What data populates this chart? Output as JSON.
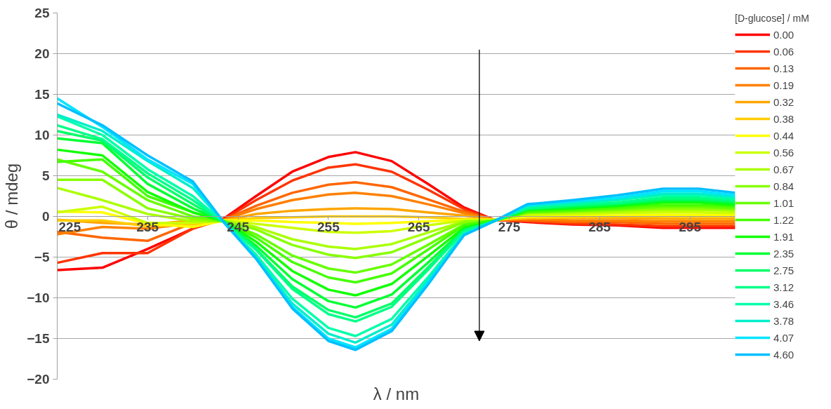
{
  "chart_data": {
    "type": "line",
    "xlabel": "λ / nm",
    "ylabel": "θ / mdeg",
    "legend_title": "[D-glucose] / mM",
    "x": [
      225,
      230,
      235,
      240,
      243.5,
      247,
      251,
      255,
      258,
      262,
      266,
      270,
      273.3,
      277,
      282,
      287,
      292,
      296,
      300
    ],
    "xlim": [
      225,
      300
    ],
    "xticks": [
      225,
      235,
      245,
      255,
      265,
      275,
      285,
      295
    ],
    "ylim": [
      -20,
      25
    ],
    "yticks": [
      -20,
      -15,
      -10,
      -5,
      0,
      5,
      10,
      15,
      20,
      25
    ],
    "grid": "y",
    "legend": "right",
    "marker": "none",
    "line_style": "solid",
    "series": [
      {
        "name": "0.00",
        "color": "#ff0000",
        "values": [
          -6.6,
          -6.3,
          -4.0,
          -1.5,
          -0.2,
          2.5,
          5.5,
          7.3,
          7.9,
          6.8,
          4.0,
          1.1,
          -0.4,
          -0.7,
          -1.0,
          -1.1,
          -1.4,
          -1.4,
          -1.4
        ]
      },
      {
        "name": "0.06",
        "color": "#ff3300",
        "values": [
          -5.7,
          -4.5,
          -4.5,
          -1.5,
          -0.3,
          2.0,
          4.4,
          6.0,
          6.4,
          5.5,
          3.3,
          0.9,
          -0.4,
          -0.6,
          -0.9,
          -1.0,
          -1.2,
          -1.2,
          -1.2
        ]
      },
      {
        "name": "0.13",
        "color": "#ff6600",
        "values": [
          -1.9,
          -2.6,
          -3.0,
          -0.8,
          -0.4,
          1.3,
          2.9,
          3.9,
          4.2,
          3.6,
          2.1,
          0.6,
          -0.4,
          -0.5,
          -0.7,
          -0.7,
          -0.9,
          -0.9,
          -0.9
        ]
      },
      {
        "name": "0.19",
        "color": "#ff8000",
        "values": [
          -2.2,
          -1.3,
          -1.5,
          -0.8,
          -0.4,
          0.9,
          2.0,
          2.7,
          2.9,
          2.5,
          1.5,
          0.4,
          -0.4,
          -0.3,
          -0.5,
          -0.5,
          -0.6,
          -0.6,
          -0.6
        ]
      },
      {
        "name": "0.32",
        "color": "#ffa500",
        "values": [
          -0.4,
          -0.8,
          -1.0,
          -0.5,
          -0.5,
          0.3,
          0.7,
          0.9,
          1.0,
          0.9,
          0.5,
          0.1,
          -0.4,
          -0.2,
          -0.2,
          -0.2,
          -0.3,
          -0.3,
          -0.3
        ]
      },
      {
        "name": "0.38",
        "color": "#ffcc00",
        "values": [
          -0.5,
          -0.5,
          -1.2,
          -1.0,
          -0.5,
          -0.2,
          -0.1,
          0.0,
          0.0,
          0.0,
          -0.1,
          -0.3,
          -0.4,
          -0.2,
          -0.1,
          0.0,
          0.0,
          0.0,
          0.0
        ]
      },
      {
        "name": "0.44",
        "color": "#ffff00",
        "values": [
          0.6,
          0.5,
          -0.9,
          -1.3,
          -0.5,
          -0.5,
          -0.7,
          -0.8,
          -0.9,
          -0.8,
          -0.6,
          -0.4,
          -0.4,
          0.0,
          0.1,
          0.1,
          0.2,
          0.2,
          0.2
        ]
      },
      {
        "name": "0.56",
        "color": "#ccff00",
        "values": [
          0.5,
          1.2,
          -0.8,
          -0.8,
          -0.5,
          -0.9,
          -1.4,
          -1.9,
          -2.0,
          -1.8,
          -1.1,
          -0.5,
          -0.5,
          0.2,
          0.3,
          0.4,
          0.5,
          0.5,
          0.4
        ]
      },
      {
        "name": "0.67",
        "color": "#aaff00",
        "values": [
          3.5,
          2.0,
          0.3,
          -0.6,
          -0.6,
          -1.3,
          -2.8,
          -3.7,
          -4.0,
          -3.4,
          -2.0,
          -0.6,
          -0.5,
          0.4,
          0.5,
          0.6,
          0.8,
          0.8,
          0.7
        ]
      },
      {
        "name": "0.84",
        "color": "#88ff00",
        "values": [
          4.5,
          4.5,
          1.0,
          -0.3,
          -0.6,
          -1.6,
          -3.5,
          -4.7,
          -5.1,
          -4.4,
          -2.6,
          -0.7,
          -0.5,
          0.5,
          0.6,
          0.8,
          1.0,
          1.0,
          0.9
        ]
      },
      {
        "name": "1.01",
        "color": "#66ff00",
        "values": [
          7.0,
          5.5,
          2.0,
          0.0,
          -0.6,
          -2.2,
          -4.8,
          -6.4,
          -6.9,
          -5.9,
          -3.5,
          -1.0,
          -0.5,
          0.5,
          0.7,
          0.9,
          1.2,
          1.2,
          1.0
        ]
      },
      {
        "name": "1.22",
        "color": "#44ff00",
        "values": [
          6.7,
          7.0,
          2.5,
          0.5,
          -0.6,
          -2.6,
          -5.6,
          -7.5,
          -8.1,
          -7.0,
          -4.1,
          -1.1,
          -0.5,
          0.6,
          0.8,
          1.1,
          1.4,
          1.4,
          1.2
        ]
      },
      {
        "name": "1.91",
        "color": "#11ff00",
        "values": [
          8.2,
          7.5,
          3.0,
          0.5,
          -0.6,
          -3.1,
          -6.7,
          -9.0,
          -9.7,
          -8.3,
          -4.9,
          -1.4,
          -0.6,
          0.8,
          1.0,
          1.3,
          1.7,
          1.7,
          1.4
        ]
      },
      {
        "name": "2.35",
        "color": "#00ff33",
        "values": [
          9.6,
          9.0,
          4.0,
          1.0,
          -0.7,
          -3.6,
          -7.7,
          -10.4,
          -11.2,
          -9.6,
          -5.7,
          -1.6,
          -0.6,
          0.9,
          1.1,
          1.4,
          1.9,
          1.9,
          1.6
        ]
      },
      {
        "name": "2.75",
        "color": "#00ff66",
        "values": [
          10.5,
          9.3,
          4.8,
          1.5,
          -0.7,
          -4.0,
          -8.6,
          -11.5,
          -12.4,
          -10.7,
          -6.3,
          -1.7,
          -0.6,
          0.9,
          1.3,
          1.6,
          2.1,
          2.1,
          1.8
        ]
      },
      {
        "name": "3.12",
        "color": "#00ff88",
        "values": [
          11.2,
          9.5,
          5.3,
          2.0,
          -0.7,
          -4.1,
          -8.9,
          -12.0,
          -12.9,
          -11.1,
          -6.6,
          -1.8,
          -0.6,
          1.0,
          1.4,
          1.7,
          2.3,
          2.3,
          2.0
        ]
      },
      {
        "name": "3.46",
        "color": "#00ffaa",
        "values": [
          12.3,
          10.0,
          5.8,
          2.5,
          -0.8,
          -4.7,
          -10.1,
          -13.7,
          -14.7,
          -12.6,
          -7.5,
          -2.1,
          -0.6,
          1.2,
          1.6,
          2.0,
          2.6,
          2.6,
          2.2
        ]
      },
      {
        "name": "3.78",
        "color": "#00eecc",
        "values": [
          12.5,
          10.5,
          6.8,
          3.5,
          -0.8,
          -5.0,
          -10.7,
          -14.4,
          -15.5,
          -13.3,
          -7.9,
          -2.2,
          -0.6,
          1.3,
          1.7,
          2.1,
          2.8,
          2.8,
          2.4
        ]
      },
      {
        "name": "4.07",
        "color": "#00e5ff",
        "values": [
          14.5,
          11.0,
          7.0,
          4.0,
          -0.8,
          -5.2,
          -11.1,
          -15.0,
          -16.1,
          -13.8,
          -8.2,
          -2.3,
          -0.6,
          1.4,
          1.9,
          2.3,
          3.1,
          3.1,
          2.6
        ]
      },
      {
        "name": "4.60",
        "color": "#00bfff",
        "values": [
          13.9,
          11.2,
          7.5,
          4.3,
          -0.8,
          -5.2,
          -11.3,
          -15.3,
          -16.4,
          -14.1,
          -8.4,
          -2.3,
          -0.6,
          1.5,
          2.0,
          2.6,
          3.4,
          3.4,
          2.9
        ]
      }
    ]
  }
}
